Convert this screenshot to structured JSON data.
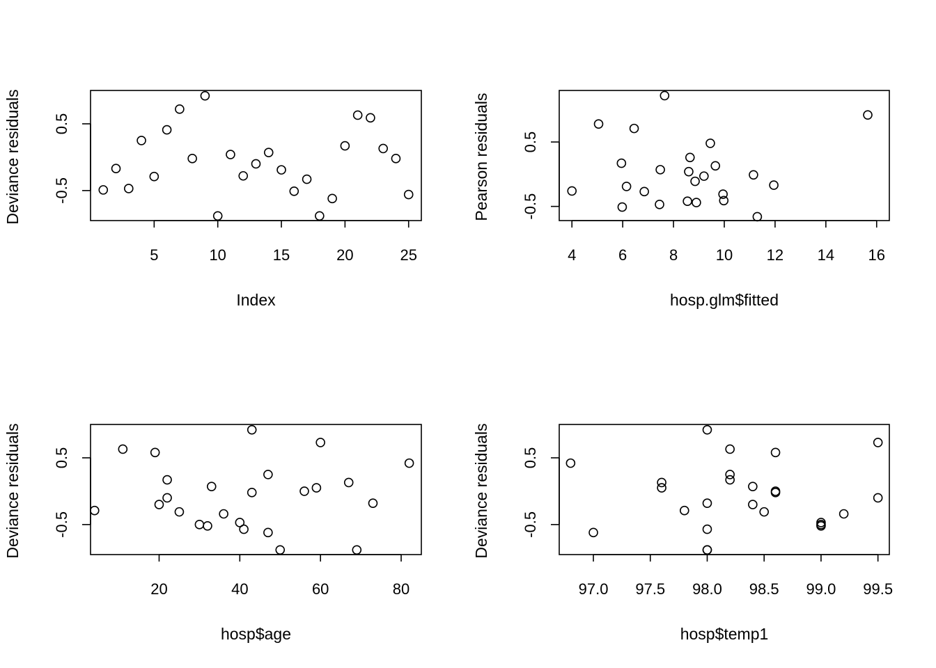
{
  "chart_data": [
    {
      "type": "scatter",
      "xlabel": "Index",
      "ylabel": "Deviance residuals",
      "xlim": [
        0,
        26
      ],
      "ylim": [
        -0.95,
        1.0
      ],
      "xticks": [
        5,
        10,
        15,
        20,
        25
      ],
      "yticks": [
        0.5,
        -0.5
      ],
      "xtick_labels": [
        "5",
        "10",
        "15",
        "20",
        "25"
      ],
      "ytick_labels": [
        "0.5",
        "-0.5"
      ],
      "x": [
        1,
        2,
        3,
        4,
        5,
        6,
        7,
        8,
        9,
        10,
        11,
        12,
        13,
        14,
        15,
        16,
        17,
        18,
        19,
        20,
        21,
        22,
        23,
        24,
        25
      ],
      "y": [
        -0.49,
        -0.17,
        -0.47,
        0.25,
        -0.29,
        0.41,
        0.72,
        -0.02,
        0.92,
        -0.88,
        0.04,
        -0.28,
        -0.1,
        0.07,
        -0.19,
        -0.51,
        -0.33,
        -0.88,
        -0.62,
        0.17,
        0.63,
        0.59,
        0.13,
        -0.02,
        -0.56
      ]
    },
    {
      "type": "scatter",
      "xlabel": "hosp.glm$fitted",
      "ylabel": "Pearson residuals",
      "xlim": [
        3.5,
        16.5
      ],
      "ylim": [
        -0.72,
        1.3
      ],
      "xticks": [
        4,
        6,
        8,
        10,
        12,
        14,
        16
      ],
      "yticks": [
        0.5,
        -0.5
      ],
      "xtick_labels": [
        "4",
        "6",
        "8",
        "10",
        "12",
        "14",
        "16"
      ],
      "ytick_labels": [
        "0.5",
        "-0.5"
      ],
      "x": [
        4.0,
        5.05,
        5.95,
        6.15,
        6.45,
        5.98,
        6.85,
        7.45,
        7.65,
        7.48,
        8.55,
        8.6,
        8.65,
        8.85,
        8.9,
        9.2,
        9.45,
        9.65,
        9.95,
        9.98,
        11.15,
        11.3,
        11.95,
        15.65
      ],
      "y": [
        -0.26,
        0.78,
        0.17,
        -0.19,
        0.71,
        -0.51,
        -0.27,
        -0.47,
        1.22,
        0.07,
        -0.42,
        0.04,
        0.26,
        -0.11,
        -0.44,
        -0.03,
        0.48,
        0.13,
        -0.31,
        -0.41,
        -0.01,
        -0.66,
        -0.17,
        0.92
      ]
    },
    {
      "type": "scatter",
      "xlabel": "hosp$age",
      "ylabel": "Deviance residuals",
      "xlim": [
        3,
        85
      ],
      "ylim": [
        -0.95,
        1.0
      ],
      "xticks": [
        20,
        40,
        60,
        80
      ],
      "yticks": [
        0.5,
        -0.5
      ],
      "xtick_labels": [
        "20",
        "40",
        "60",
        "80"
      ],
      "ytick_labels": [
        "0.5",
        "-0.5"
      ],
      "x": [
        4,
        11,
        19,
        20,
        22,
        22,
        25,
        30,
        32,
        33,
        36,
        40,
        41,
        43,
        43,
        47,
        47,
        50,
        56,
        59,
        60,
        67,
        69,
        73,
        82
      ],
      "y": [
        -0.29,
        0.63,
        0.58,
        -0.2,
        -0.1,
        0.17,
        -0.31,
        -0.5,
        -0.52,
        0.07,
        -0.34,
        -0.47,
        -0.57,
        -0.02,
        0.92,
        0.25,
        -0.62,
        -0.88,
        0.0,
        0.05,
        0.73,
        0.13,
        -0.88,
        -0.18,
        0.42
      ]
    },
    {
      "type": "scatter",
      "xlabel": "hosp$temp1",
      "ylabel": "Deviance residuals",
      "xlim": [
        96.7,
        99.6
      ],
      "ylim": [
        -0.95,
        1.0
      ],
      "xticks": [
        97.0,
        97.5,
        98.0,
        98.5,
        99.0,
        99.5
      ],
      "yticks": [
        0.5,
        -0.5
      ],
      "xtick_labels": [
        "97.0",
        "97.5",
        "98.0",
        "98.5",
        "99.0",
        "99.5"
      ],
      "ytick_labels": [
        "0.5",
        "-0.5"
      ],
      "x": [
        96.8,
        97.0,
        97.6,
        97.6,
        97.8,
        98.0,
        98.0,
        98.0,
        98.0,
        98.0,
        98.2,
        98.2,
        98.2,
        98.4,
        98.4,
        98.5,
        98.6,
        98.6,
        98.6,
        99.0,
        99.0,
        99.0,
        99.2,
        99.5,
        99.5
      ],
      "y": [
        0.42,
        -0.62,
        0.13,
        0.05,
        -0.29,
        -0.18,
        -0.57,
        -0.88,
        -0.88,
        0.92,
        0.63,
        0.25,
        0.17,
        0.07,
        -0.2,
        -0.31,
        0.58,
        0.0,
        -0.02,
        -0.47,
        -0.5,
        -0.52,
        -0.34,
        -0.1,
        0.73
      ]
    }
  ]
}
